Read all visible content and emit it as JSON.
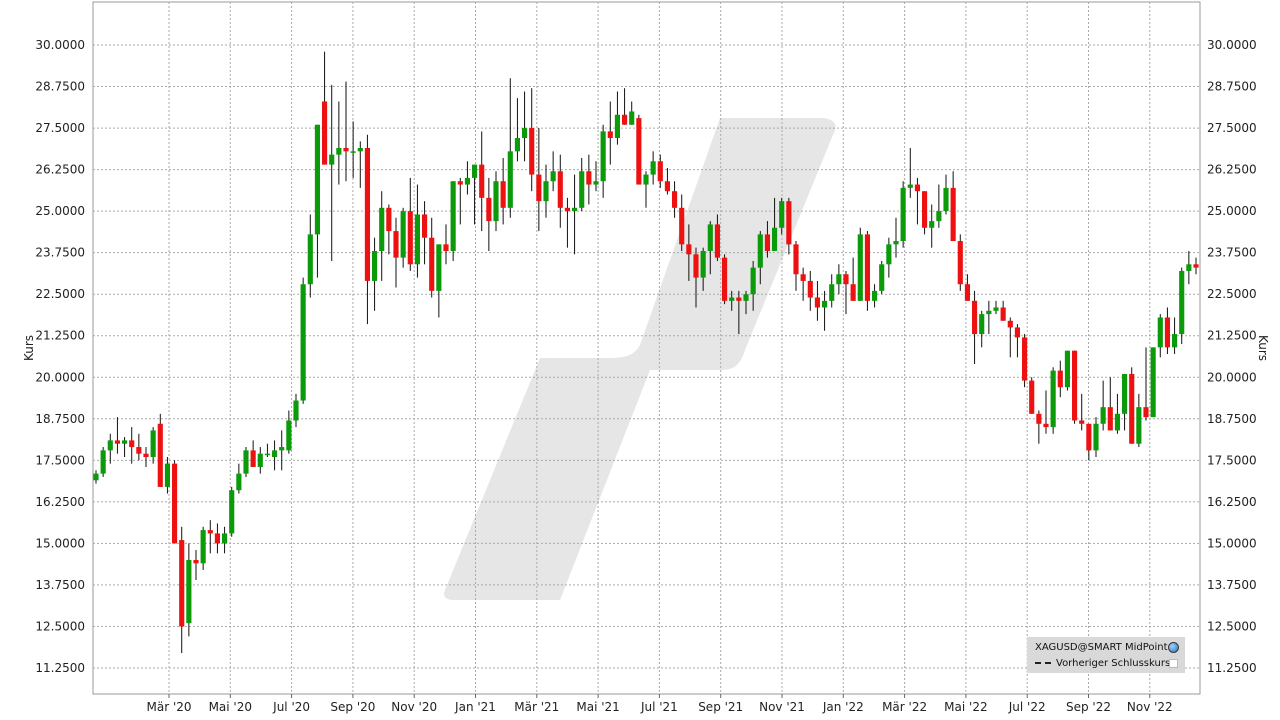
{
  "chart_data": {
    "type": "candlestick",
    "ylabel_left": "Kurs",
    "ylabel_right": "Kurs",
    "ylim": [
      10.8,
      31.2
    ],
    "y_ticks": [
      "11.2500",
      "12.5000",
      "13.7500",
      "15.0000",
      "16.2500",
      "17.5000",
      "18.7500",
      "20.0000",
      "21.2500",
      "22.5000",
      "23.7500",
      "25.0000",
      "26.2500",
      "27.5000",
      "28.7500",
      "30.0000"
    ],
    "y_tick_values": [
      11.25,
      12.5,
      13.75,
      15,
      16.25,
      17.5,
      18.75,
      20,
      21.25,
      22.5,
      23.75,
      25,
      26.25,
      27.5,
      28.75,
      30
    ],
    "x_tick_labels": [
      "Mär '20",
      "Mai '20",
      "Jul '20",
      "Sep '20",
      "Nov '20",
      "Jan '21",
      "Mär '21",
      "Mai '21",
      "Jul '21",
      "Sep '21",
      "Nov '21",
      "Jan '22",
      "Mär '22",
      "Mai '22",
      "Jul '22",
      "Sep '22",
      "Nov '22"
    ],
    "grid": true,
    "legend_position": "bottom-right",
    "colors": {
      "up": "#0a9a0a",
      "down": "#ee1111",
      "grid": "#aaaaaa",
      "watermark": "#e6e6e6"
    },
    "candles_ohlc": [
      [
        16.9,
        17.2,
        16.8,
        17.1
      ],
      [
        17.1,
        17.9,
        17.0,
        17.8
      ],
      [
        17.8,
        18.3,
        17.4,
        18.1
      ],
      [
        18.1,
        18.8,
        17.7,
        18.0
      ],
      [
        18.0,
        18.2,
        17.6,
        18.1
      ],
      [
        18.1,
        18.5,
        17.4,
        17.9
      ],
      [
        17.9,
        18.3,
        17.5,
        17.7
      ],
      [
        17.7,
        17.9,
        17.3,
        17.6
      ],
      [
        17.6,
        18.5,
        17.4,
        18.4
      ],
      [
        18.6,
        18.9,
        16.8,
        16.7
      ],
      [
        16.7,
        17.6,
        16.5,
        17.4
      ],
      [
        17.4,
        17.5,
        15.9,
        15.0
      ],
      [
        15.1,
        15.5,
        11.7,
        12.5
      ],
      [
        12.6,
        15.0,
        12.2,
        14.5
      ],
      [
        14.5,
        14.8,
        13.9,
        14.4
      ],
      [
        14.4,
        15.5,
        14.2,
        15.4
      ],
      [
        15.4,
        15.7,
        14.7,
        15.3
      ],
      [
        15.3,
        15.6,
        14.7,
        15.0
      ],
      [
        15.0,
        15.5,
        14.7,
        15.3
      ],
      [
        15.3,
        16.7,
        15.2,
        16.6
      ],
      [
        16.6,
        17.4,
        16.5,
        17.1
      ],
      [
        17.1,
        17.9,
        17.0,
        17.8
      ],
      [
        17.8,
        18.1,
        17.3,
        17.3
      ],
      [
        17.3,
        17.9,
        17.1,
        17.7
      ],
      [
        17.7,
        18.0,
        17.6,
        17.7
      ],
      [
        17.6,
        18.1,
        17.2,
        17.8
      ],
      [
        17.8,
        18.4,
        17.2,
        17.9
      ],
      [
        17.8,
        19.0,
        17.7,
        18.7
      ],
      [
        18.7,
        19.5,
        18.5,
        19.3
      ],
      [
        19.3,
        23.0,
        19.2,
        22.8
      ],
      [
        22.8,
        24.9,
        22.4,
        24.3
      ],
      [
        24.3,
        27.6,
        23.0,
        27.6
      ],
      [
        28.3,
        29.8,
        26.4,
        26.4
      ],
      [
        26.4,
        28.8,
        23.5,
        26.7
      ],
      [
        26.7,
        28.3,
        25.8,
        26.9
      ],
      [
        26.9,
        28.9,
        25.9,
        26.8
      ],
      [
        26.8,
        27.7,
        26.0,
        26.8
      ],
      [
        26.8,
        27.1,
        25.7,
        26.9
      ],
      [
        26.9,
        27.3,
        21.6,
        22.9
      ],
      [
        22.9,
        24.2,
        22.0,
        23.8
      ],
      [
        23.8,
        25.6,
        22.9,
        25.1
      ],
      [
        25.1,
        25.2,
        23.7,
        24.4
      ],
      [
        24.4,
        24.8,
        22.7,
        23.6
      ],
      [
        23.6,
        25.1,
        23.3,
        25.0
      ],
      [
        25.0,
        26.0,
        23.2,
        23.4
      ],
      [
        23.4,
        25.8,
        23.0,
        24.9
      ],
      [
        24.9,
        25.3,
        23.4,
        24.2
      ],
      [
        24.2,
        24.8,
        22.4,
        22.6
      ],
      [
        22.6,
        23.6,
        21.8,
        24.0
      ],
      [
        24.0,
        24.6,
        23.4,
        23.8
      ],
      [
        23.8,
        25.0,
        23.5,
        25.9
      ],
      [
        25.9,
        26.0,
        24.6,
        25.8
      ],
      [
        25.8,
        26.5,
        25.5,
        26.0
      ],
      [
        26.0,
        26.4,
        24.6,
        26.4
      ],
      [
        26.4,
        27.4,
        24.4,
        25.4
      ],
      [
        25.4,
        26.0,
        23.8,
        24.7
      ],
      [
        24.7,
        26.2,
        24.4,
        25.9
      ],
      [
        25.9,
        26.6,
        24.6,
        25.1
      ],
      [
        25.1,
        29.0,
        24.8,
        26.8
      ],
      [
        26.8,
        28.4,
        26.5,
        27.2
      ],
      [
        27.2,
        28.6,
        26.5,
        27.5
      ],
      [
        27.5,
        28.7,
        25.6,
        26.1
      ],
      [
        26.1,
        27.5,
        24.4,
        25.3
      ],
      [
        25.3,
        26.4,
        24.8,
        25.9
      ],
      [
        25.9,
        26.8,
        25.6,
        26.2
      ],
      [
        26.2,
        26.7,
        24.5,
        25.1
      ],
      [
        25.1,
        25.4,
        23.9,
        25.0
      ],
      [
        25.0,
        26.1,
        23.7,
        25.1
      ],
      [
        25.1,
        26.6,
        25.0,
        26.2
      ],
      [
        26.2,
        26.7,
        25.2,
        25.8
      ],
      [
        25.8,
        26.5,
        25.6,
        25.9
      ],
      [
        25.9,
        27.6,
        25.4,
        27.4
      ],
      [
        27.4,
        28.3,
        26.4,
        27.2
      ],
      [
        27.2,
        28.6,
        27.0,
        27.9
      ],
      [
        27.9,
        28.7,
        27.6,
        27.6
      ],
      [
        27.6,
        28.3,
        27.8,
        28.0
      ],
      [
        27.8,
        27.9,
        25.8,
        25.8
      ],
      [
        25.8,
        26.2,
        25.1,
        26.1
      ],
      [
        26.1,
        26.8,
        25.8,
        26.5
      ],
      [
        26.5,
        26.7,
        25.7,
        25.9
      ],
      [
        25.9,
        26.3,
        25.5,
        25.6
      ],
      [
        25.6,
        25.9,
        24.8,
        25.1
      ],
      [
        25.1,
        25.5,
        23.8,
        24.0
      ],
      [
        24.0,
        24.6,
        22.9,
        23.7
      ],
      [
        23.7,
        23.9,
        22.1,
        23.0
      ],
      [
        23.0,
        23.9,
        22.6,
        23.8
      ],
      [
        23.8,
        24.7,
        23.1,
        24.6
      ],
      [
        24.6,
        24.9,
        23.5,
        23.6
      ],
      [
        23.6,
        23.7,
        22.2,
        22.3
      ],
      [
        22.3,
        22.6,
        22.0,
        22.4
      ],
      [
        22.4,
        22.6,
        21.3,
        22.3
      ],
      [
        22.3,
        22.6,
        21.9,
        22.5
      ],
      [
        22.5,
        23.5,
        22.0,
        23.3
      ],
      [
        23.3,
        24.4,
        22.8,
        24.3
      ],
      [
        24.3,
        24.7,
        23.6,
        23.8
      ],
      [
        23.8,
        25.4,
        23.8,
        24.5
      ],
      [
        24.5,
        25.4,
        24.3,
        25.3
      ],
      [
        25.3,
        25.4,
        23.7,
        24.0
      ],
      [
        24.0,
        24.1,
        22.6,
        23.1
      ],
      [
        23.1,
        23.3,
        22.3,
        22.9
      ],
      [
        22.9,
        23.2,
        22.0,
        22.4
      ],
      [
        22.4,
        22.9,
        21.7,
        22.1
      ],
      [
        22.1,
        22.6,
        21.4,
        22.3
      ],
      [
        22.3,
        23.1,
        22.1,
        22.8
      ],
      [
        22.8,
        23.4,
        22.5,
        23.1
      ],
      [
        23.1,
        23.2,
        21.9,
        22.8
      ],
      [
        22.8,
        23.6,
        22.4,
        22.3
      ],
      [
        22.3,
        24.5,
        22.3,
        24.3
      ],
      [
        24.3,
        24.4,
        22.0,
        22.3
      ],
      [
        22.3,
        22.8,
        22.1,
        22.6
      ],
      [
        22.6,
        23.5,
        22.5,
        23.4
      ],
      [
        23.4,
        24.2,
        23.0,
        24.0
      ],
      [
        24.0,
        24.8,
        23.6,
        24.1
      ],
      [
        24.1,
        25.9,
        23.9,
        25.7
      ],
      [
        25.7,
        26.9,
        25.4,
        25.8
      ],
      [
        25.8,
        26.0,
        24.6,
        25.6
      ],
      [
        25.6,
        25.6,
        24.3,
        24.5
      ],
      [
        24.5,
        25.2,
        23.9,
        24.7
      ],
      [
        24.7,
        25.8,
        24.5,
        25.0
      ],
      [
        25.0,
        26.1,
        24.9,
        25.7
      ],
      [
        25.7,
        26.2,
        24.2,
        24.1
      ],
      [
        24.1,
        24.3,
        22.6,
        22.8
      ],
      [
        22.8,
        23.1,
        22.3,
        22.3
      ],
      [
        22.3,
        22.6,
        20.4,
        21.3
      ],
      [
        21.3,
        22.0,
        20.9,
        21.9
      ],
      [
        21.9,
        22.3,
        21.3,
        22.0
      ],
      [
        22.0,
        22.3,
        21.9,
        22.1
      ],
      [
        22.1,
        22.3,
        21.8,
        21.7
      ],
      [
        21.7,
        21.8,
        20.6,
        21.5
      ],
      [
        21.5,
        21.6,
        20.6,
        21.2
      ],
      [
        21.2,
        21.3,
        19.7,
        19.9
      ],
      [
        19.9,
        20.0,
        19.0,
        18.9
      ],
      [
        18.9,
        19.0,
        18.0,
        18.6
      ],
      [
        18.6,
        19.6,
        18.3,
        18.5
      ],
      [
        18.5,
        20.3,
        18.3,
        20.2
      ],
      [
        20.2,
        20.5,
        19.4,
        19.7
      ],
      [
        19.7,
        20.7,
        19.6,
        20.8
      ],
      [
        20.8,
        20.8,
        18.6,
        18.7
      ],
      [
        18.7,
        19.5,
        18.4,
        18.6
      ],
      [
        18.6,
        18.6,
        17.5,
        17.8
      ],
      [
        17.8,
        18.8,
        17.6,
        18.6
      ],
      [
        18.6,
        19.9,
        18.4,
        19.1
      ],
      [
        19.1,
        20.0,
        18.8,
        18.4
      ],
      [
        18.4,
        19.5,
        18.3,
        18.9
      ],
      [
        18.9,
        20.1,
        18.4,
        20.1
      ],
      [
        20.1,
        20.3,
        18.0,
        18.0
      ],
      [
        18.0,
        19.5,
        17.9,
        19.1
      ],
      [
        19.1,
        20.9,
        18.7,
        18.8
      ],
      [
        18.8,
        20.9,
        18.8,
        20.9
      ],
      [
        20.9,
        21.9,
        20.6,
        21.8
      ],
      [
        21.8,
        22.1,
        20.7,
        20.9
      ],
      [
        20.9,
        21.8,
        20.7,
        21.3
      ],
      [
        21.3,
        23.3,
        21.0,
        23.2
      ],
      [
        23.2,
        23.8,
        22.8,
        23.4
      ],
      [
        23.4,
        23.6,
        23.1,
        23.3
      ]
    ]
  },
  "legend": {
    "symbol_label": "XAGUSD@SMART MidPoint",
    "prev_close_label": "Vorheriger Schlusskurs",
    "globe_icon": "globe-icon",
    "checkbox_icon": "checkbox-icon"
  }
}
